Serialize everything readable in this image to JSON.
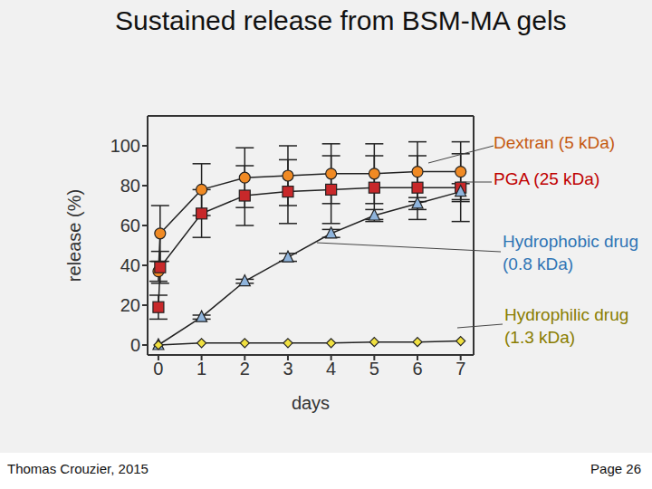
{
  "title": "Sustained release from BSM-MA gels",
  "footer": {
    "left": "Thomas Crouzier, 2015",
    "right": "Page 26"
  },
  "chart_data": {
    "type": "line",
    "x_label": "days",
    "y_label": "release (%)",
    "xlim": [
      -0.25,
      7.3
    ],
    "xticks": [
      0,
      1,
      2,
      3,
      4,
      5,
      6,
      7
    ],
    "ylim": [
      -5,
      115
    ],
    "yticks": [
      0,
      20,
      40,
      60,
      80,
      100
    ],
    "grid": false,
    "series": [
      {
        "name": "Dextran (5 kDa)",
        "color": "#f08a24",
        "marker": "circle",
        "x": [
          0,
          0.04,
          1,
          2,
          3,
          4,
          5,
          6,
          7
        ],
        "values": [
          37,
          56,
          78,
          84,
          85,
          86,
          86,
          87,
          87
        ],
        "errors": [
          5,
          14,
          13,
          15,
          15,
          15,
          15,
          15,
          15
        ]
      },
      {
        "name": "PGA (25 kDa)",
        "color": "#c8282a",
        "marker": "square",
        "x": [
          0,
          0.04,
          1,
          2,
          3,
          4,
          5,
          6,
          7
        ],
        "values": [
          19,
          39,
          66,
          75,
          77,
          78,
          79,
          79,
          79
        ],
        "errors": [
          6,
          8,
          12,
          15,
          16,
          17,
          16,
          16,
          17
        ]
      },
      {
        "name": "Hydrophobic drug (0.8 kDa)",
        "color": "#8fb4dc",
        "marker": "triangle",
        "x": [
          0,
          1,
          2,
          3,
          4,
          5,
          6,
          7
        ],
        "values": [
          0,
          14,
          32,
          44,
          56,
          65,
          71,
          77
        ],
        "errors": [
          0,
          1,
          1,
          2,
          2,
          3,
          3,
          4
        ]
      },
      {
        "name": "Hydrophilic drug (1.3 kDa)",
        "color": "#f0e040",
        "marker": "diamond",
        "x": [
          0,
          1,
          2,
          3,
          4,
          5,
          6,
          7
        ],
        "values": [
          0,
          1,
          1,
          1,
          1,
          1.5,
          1.5,
          2
        ],
        "errors": [
          0,
          0,
          0,
          0,
          0,
          0,
          0,
          0
        ]
      }
    ]
  }
}
